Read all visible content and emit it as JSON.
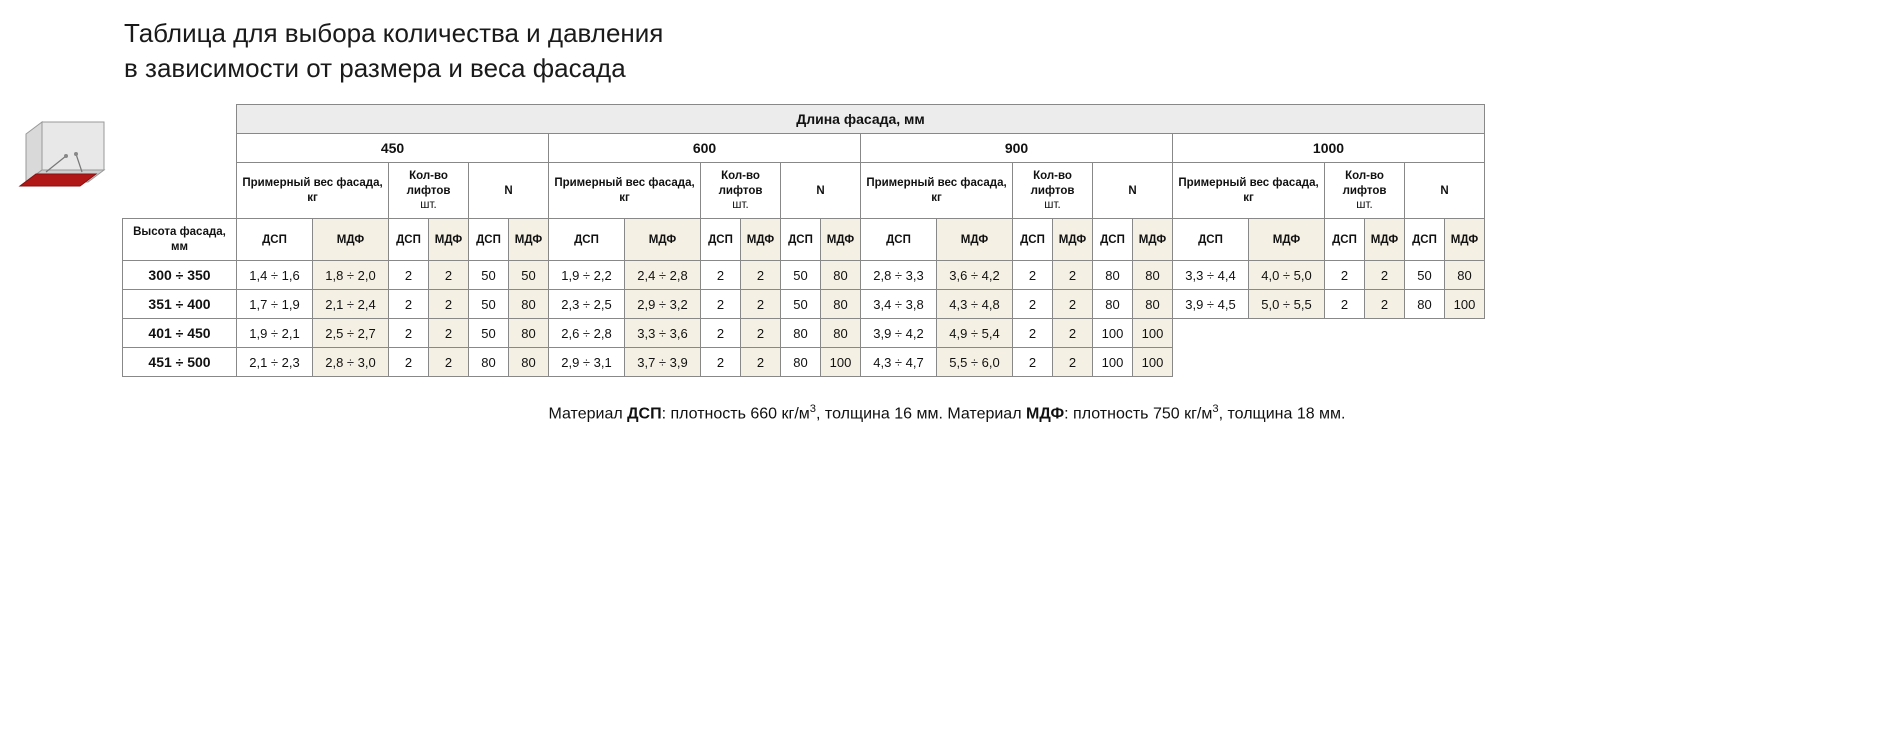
{
  "title_line1": "Таблица для выбора количества и давления",
  "title_line2": "в зависимости от размера и веса фасада",
  "headers": {
    "length": "Длина фасада, мм",
    "height": "Высота фасада, мм",
    "weight": "Примерный вес фасада,",
    "weight_unit": "кг",
    "qty": "Кол-во лифтов",
    "qty_unit": "шт.",
    "force": "N",
    "dsp": "ДСП",
    "mdf": "МДФ",
    "lengths": [
      "450",
      "600",
      "900",
      "1000"
    ]
  },
  "rows": [
    {
      "h": "300 ÷ 350",
      "g": [
        {
          "wd": "1,4 ÷ 1,6",
          "wm": "1,8 ÷ 2,0",
          "qd": "2",
          "qm": "2",
          "nd": "50",
          "nm": "50"
        },
        {
          "wd": "1,9 ÷ 2,2",
          "wm": "2,4 ÷ 2,8",
          "qd": "2",
          "qm": "2",
          "nd": "50",
          "nm": "80"
        },
        {
          "wd": "2,8 ÷ 3,3",
          "wm": "3,6 ÷ 4,2",
          "qd": "2",
          "qm": "2",
          "nd": "80",
          "nm": "80"
        },
        {
          "wd": "3,3 ÷ 4,4",
          "wm": "4,0 ÷ 5,0",
          "qd": "2",
          "qm": "2",
          "nd": "50",
          "nm": "80"
        }
      ]
    },
    {
      "h": "351 ÷ 400",
      "g": [
        {
          "wd": "1,7 ÷ 1,9",
          "wm": "2,1 ÷ 2,4",
          "qd": "2",
          "qm": "2",
          "nd": "50",
          "nm": "80"
        },
        {
          "wd": "2,3 ÷ 2,5",
          "wm": "2,9 ÷ 3,2",
          "qd": "2",
          "qm": "2",
          "nd": "50",
          "nm": "80"
        },
        {
          "wd": "3,4 ÷ 3,8",
          "wm": "4,3 ÷ 4,8",
          "qd": "2",
          "qm": "2",
          "nd": "80",
          "nm": "80"
        },
        {
          "wd": "3,9 ÷ 4,5",
          "wm": "5,0 ÷ 5,5",
          "qd": "2",
          "qm": "2",
          "nd": "80",
          "nm": "100"
        }
      ]
    },
    {
      "h": "401 ÷ 450",
      "g": [
        {
          "wd": "1,9 ÷ 2,1",
          "wm": "2,5 ÷ 2,7",
          "qd": "2",
          "qm": "2",
          "nd": "50",
          "nm": "80"
        },
        {
          "wd": "2,6 ÷ 2,8",
          "wm": "3,3 ÷ 3,6",
          "qd": "2",
          "qm": "2",
          "nd": "80",
          "nm": "80"
        },
        {
          "wd": "3,9 ÷ 4,2",
          "wm": "4,9 ÷ 5,4",
          "qd": "2",
          "qm": "2",
          "nd": "100",
          "nm": "100"
        }
      ]
    },
    {
      "h": "451 ÷ 500",
      "g": [
        {
          "wd": "2,1 ÷ 2,3",
          "wm": "2,8 ÷ 3,0",
          "qd": "2",
          "qm": "2",
          "nd": "80",
          "nm": "80"
        },
        {
          "wd": "2,9 ÷ 3,1",
          "wm": "3,7 ÷ 3,9",
          "qd": "2",
          "qm": "2",
          "nd": "80",
          "nm": "100"
        },
        {
          "wd": "4,3 ÷ 4,7",
          "wm": "5,5 ÷ 6,0",
          "qd": "2",
          "qm": "2",
          "nd": "100",
          "nm": "100"
        }
      ]
    }
  ],
  "footnote": {
    "t1": "Материал ",
    "b1": "ДСП",
    "t2": ": плотность 660 кг/м",
    "t3": ", толщина 16 мм. Материал ",
    "b2": "МДФ",
    "t4": ": плотность 750 кг/м",
    "t5": ", толщина 18 мм."
  },
  "colors": {
    "gray": "#ececec",
    "cream": "#f4f0e3",
    "border": "#888888",
    "text": "#111111",
    "cube_gray": "#d9d9d9",
    "cube_red": "#b01818"
  }
}
